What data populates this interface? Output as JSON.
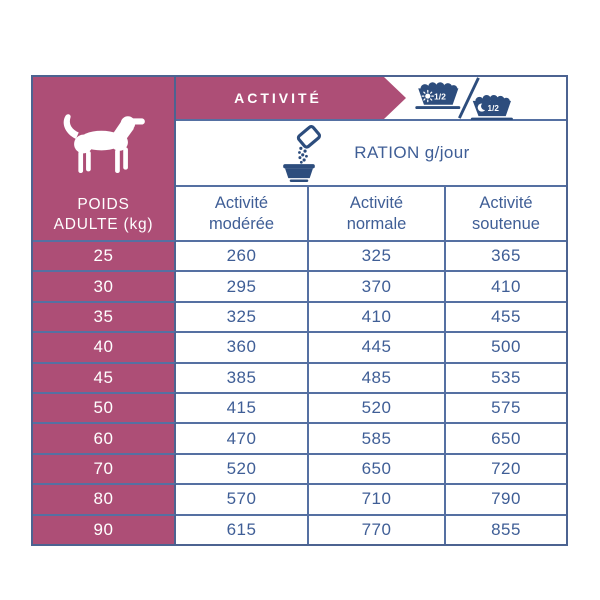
{
  "colors": {
    "pink": "#ad4e76",
    "navy": "#2d4d7d",
    "text_blue": "#3f5e96",
    "grid_line": "#5570a2",
    "outer_border": "#4c6391"
  },
  "header": {
    "activity_label": "ACTIVITÉ",
    "ration_label": "RATION g/jour",
    "weight_label_line1": "POIDS",
    "weight_label_line2": "ADULTE (kg)",
    "day_fraction": "1/2",
    "night_fraction": "1/2",
    "activity_columns": [
      {
        "line1": "Activité",
        "line2": "modérée"
      },
      {
        "line1": "Activité",
        "line2": "normale"
      },
      {
        "line1": "Activité",
        "line2": "soutenue"
      }
    ]
  },
  "icons": {
    "dog": "dog-silhouette-icon",
    "scoop": "kibble-scoop-bowl-icon",
    "day_bowl": "day-half-ration-bowl-icon",
    "night_bowl": "night-half-ration-bowl-icon"
  },
  "chart_data": {
    "type": "table",
    "title": "RATION g/jour",
    "columns": [
      "POIDS ADULTE (kg)",
      "Activité modérée",
      "Activité normale",
      "Activité soutenue"
    ],
    "rows": [
      {
        "weight": "25",
        "values": [
          "260",
          "325",
          "365"
        ]
      },
      {
        "weight": "30",
        "values": [
          "295",
          "370",
          "410"
        ]
      },
      {
        "weight": "35",
        "values": [
          "325",
          "410",
          "455"
        ]
      },
      {
        "weight": "40",
        "values": [
          "360",
          "445",
          "500"
        ]
      },
      {
        "weight": "45",
        "values": [
          "385",
          "485",
          "535"
        ]
      },
      {
        "weight": "50",
        "values": [
          "415",
          "520",
          "575"
        ]
      },
      {
        "weight": "60",
        "values": [
          "470",
          "585",
          "650"
        ]
      },
      {
        "weight": "70",
        "values": [
          "520",
          "650",
          "720"
        ]
      },
      {
        "weight": "80",
        "values": [
          "570",
          "710",
          "790"
        ]
      },
      {
        "weight": "90",
        "values": [
          "615",
          "770",
          "855"
        ]
      }
    ],
    "notes": "ration in grams per day; half morning (sun) and half evening (moon)"
  }
}
